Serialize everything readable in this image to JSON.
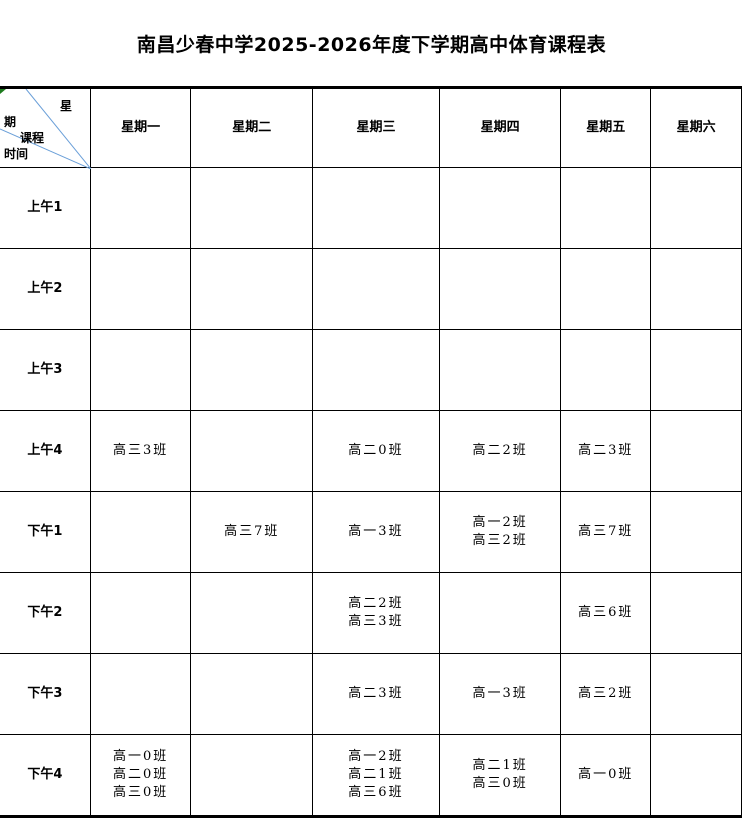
{
  "title": "南昌少春中学2025-2026年度下学期高中体育课程表",
  "corner": {
    "xing": "星",
    "qi": "期",
    "kecheng": "课程",
    "shijian": "时间"
  },
  "days": [
    "星期一",
    "星期二",
    "星期三",
    "星期四",
    "星期五",
    "星期六"
  ],
  "rows": [
    {
      "time": "上午1",
      "cells": [
        [],
        [],
        [],
        [],
        [],
        []
      ]
    },
    {
      "time": "上午2",
      "cells": [
        [],
        [],
        [],
        [],
        [],
        []
      ]
    },
    {
      "time": "上午3",
      "cells": [
        [],
        [],
        [],
        [],
        [],
        []
      ]
    },
    {
      "time": "上午4",
      "cells": [
        [
          "高三3班"
        ],
        [],
        [
          "高二0班"
        ],
        [
          "高二2班"
        ],
        [
          "高二3班"
        ],
        []
      ]
    },
    {
      "time": "下午1",
      "cells": [
        [],
        [
          "高三7班"
        ],
        [
          "高一3班"
        ],
        [
          "高一2班",
          "高三2班"
        ],
        [
          "高三7班"
        ],
        []
      ]
    },
    {
      "time": "下午2",
      "cells": [
        [],
        [],
        [
          "高二2班",
          "高三3班"
        ],
        [],
        [
          "高三6班"
        ],
        []
      ]
    },
    {
      "time": "下午3",
      "cells": [
        [],
        [],
        [
          "高二3班"
        ],
        [
          "高一3班"
        ],
        [
          "高三2班"
        ],
        []
      ]
    },
    {
      "time": "下午4",
      "cells": [
        [
          "高一0班",
          "高二0班",
          "高三0班"
        ],
        [],
        [
          "高一2班",
          "高二1班",
          "高三6班"
        ],
        [
          "高二1班",
          "高三0班"
        ],
        [
          "高一0班"
        ],
        []
      ]
    }
  ]
}
